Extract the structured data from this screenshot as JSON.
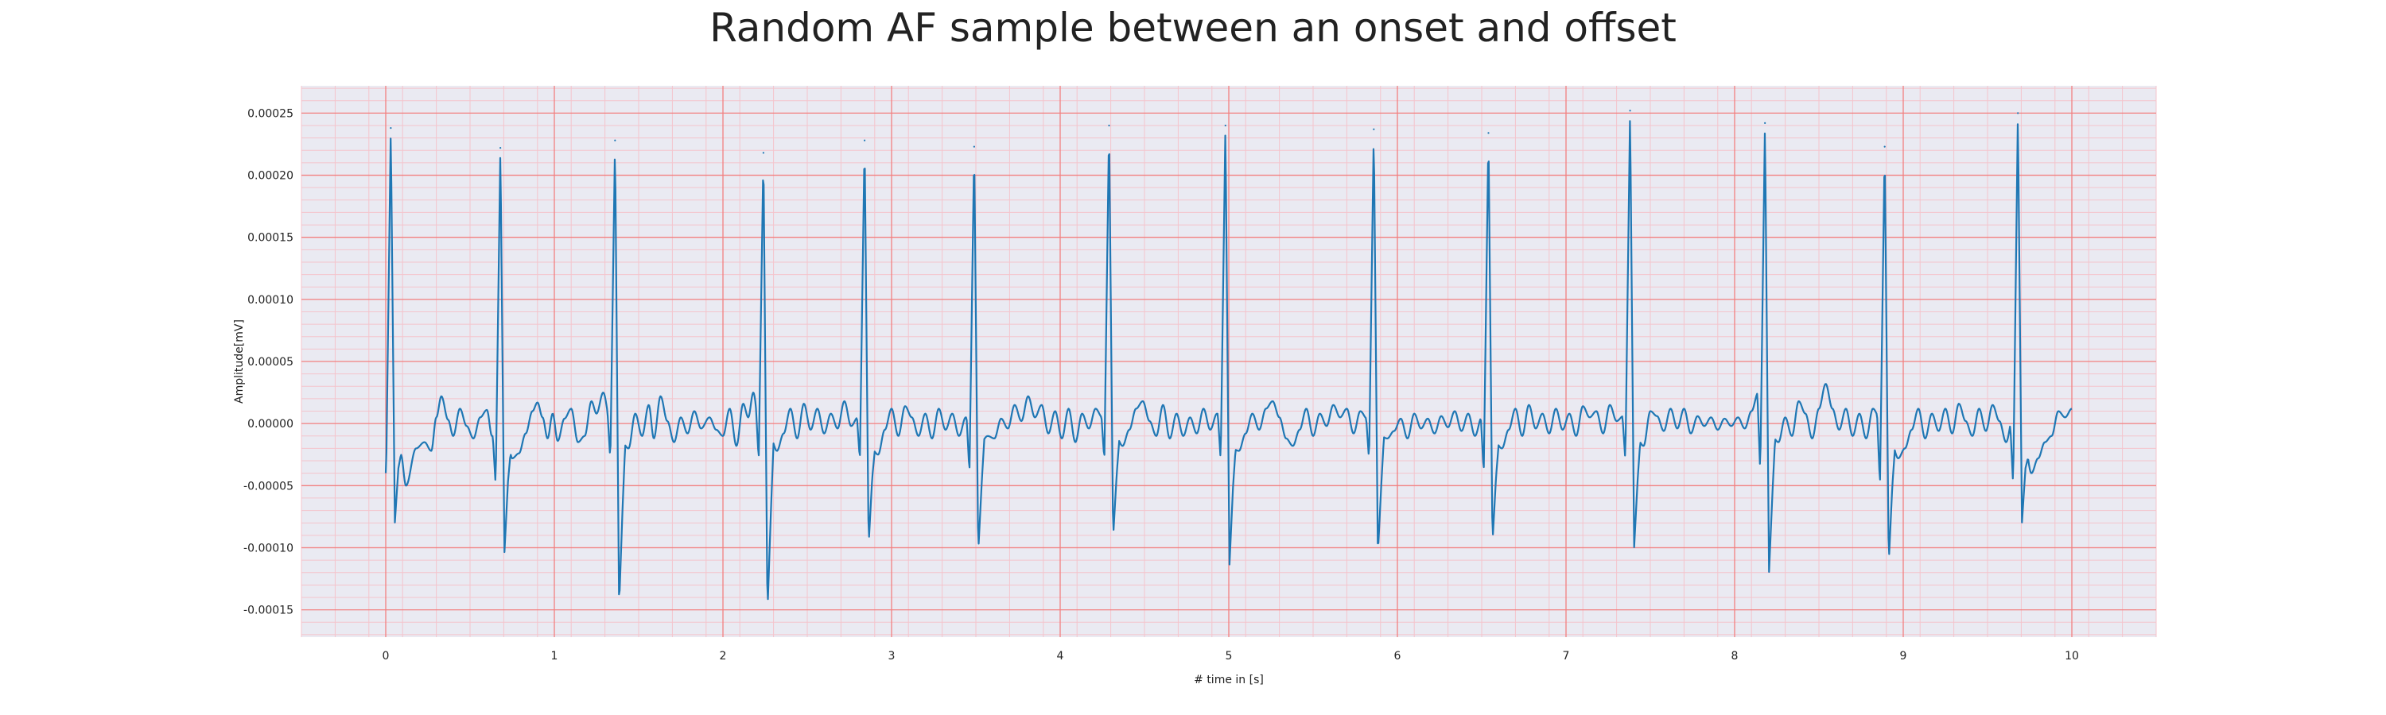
{
  "chart_data": {
    "type": "line",
    "title": "Random AF sample between an onset and offset",
    "xlabel": "# time in [s]",
    "ylabel": "Amplitude[mV]",
    "xlim": [
      -0.5,
      10.5
    ],
    "ylim": [
      -0.000172,
      0.000272
    ],
    "x_ticks": [
      0,
      1,
      2,
      3,
      4,
      5,
      6,
      7,
      8,
      9,
      10
    ],
    "x_tick_labels": [
      "0",
      "1",
      "2",
      "3",
      "4",
      "5",
      "6",
      "7",
      "8",
      "9",
      "10"
    ],
    "y_ticks": [
      -0.00015,
      -0.0001,
      -5e-05,
      0,
      5e-05,
      0.0001,
      0.00015,
      0.0002,
      0.00025
    ],
    "y_tick_labels": [
      "-0.00015",
      "-0.00010",
      "-0.00005",
      "0.00000",
      "0.00005",
      "0.00010",
      "0.00015",
      "0.00020",
      "0.00025"
    ],
    "grid": true,
    "grid_style": "ECG paper: major red lines at tick positions, minor pink subdivisions",
    "colors": {
      "line": "#1f77b4",
      "background": "#eaeaf2",
      "major_grid": "#f28080",
      "minor_grid": "#f4c4cc",
      "text": "#222222"
    },
    "series": [
      {
        "beats": [
          {
            "t": 0.03,
            "r": 0.000238,
            "q": -4.5e-05,
            "s": -8e-05
          },
          {
            "t": 0.68,
            "r": 0.000222,
            "q": -5e-05,
            "s": -0.000104
          },
          {
            "t": 1.36,
            "r": 0.000228,
            "q": -3e-05,
            "s": -0.000148
          },
          {
            "t": 2.24,
            "r": 0.000218,
            "q": -3e-05,
            "s": -0.000152
          },
          {
            "t": 2.84,
            "r": 0.000228,
            "q": -3e-05,
            "s": -9.8e-05
          },
          {
            "t": 3.49,
            "r": 0.000223,
            "q": -4e-05,
            "s": -0.000104
          },
          {
            "t": 4.29,
            "r": 0.00024,
            "q": -3e-05,
            "s": -9.2e-05
          },
          {
            "t": 4.98,
            "r": 0.00024,
            "q": -3e-05,
            "s": -0.000114
          },
          {
            "t": 5.86,
            "r": 0.000237,
            "q": -3e-05,
            "s": -0.000106
          },
          {
            "t": 6.54,
            "r": 0.000234,
            "q": -4e-05,
            "s": -9.6e-05
          },
          {
            "t": 7.38,
            "r": 0.000252,
            "q": -3e-05,
            "s": -0.0001
          },
          {
            "t": 8.18,
            "r": 0.000242,
            "q": -4e-05,
            "s": -0.00012
          },
          {
            "t": 8.89,
            "r": 0.000223,
            "q": -5e-05,
            "s": -0.000113
          },
          {
            "t": 9.68,
            "r": 0.00025,
            "q": -5e-05,
            "s": -8e-05
          }
        ],
        "t_range": [
          0,
          10
        ],
        "baseline": [
          [
            0.0,
            -2e-06
          ],
          [
            0.05,
            -3e-05
          ],
          [
            0.09,
            -2.5e-05
          ],
          [
            0.12,
            -5e-05
          ],
          [
            0.18,
            -2e-05
          ],
          [
            0.23,
            -1.5e-05
          ],
          [
            0.27,
            -2.2e-05
          ],
          [
            0.3,
            5e-06
          ],
          [
            0.33,
            2.2e-05
          ],
          [
            0.37,
            3e-06
          ],
          [
            0.4,
            -1e-05
          ],
          [
            0.44,
            1.2e-05
          ],
          [
            0.48,
            -2e-06
          ],
          [
            0.52,
            -1.2e-05
          ],
          [
            0.56,
            5e-06
          ],
          [
            0.6,
            1.1e-05
          ],
          [
            0.63,
            -1e-05
          ],
          [
            0.72,
            -1.2e-05
          ],
          [
            0.75,
            -2.8e-05
          ],
          [
            0.79,
            -2.4e-05
          ],
          [
            0.83,
            -8e-06
          ],
          [
            0.87,
            1e-05
          ],
          [
            0.9,
            1.7e-05
          ],
          [
            0.93,
            5e-06
          ],
          [
            0.96,
            -1.2e-05
          ],
          [
            0.99,
            8e-06
          ],
          [
            1.02,
            -1.4e-05
          ],
          [
            1.06,
            4e-06
          ],
          [
            1.1,
            1.2e-05
          ],
          [
            1.14,
            -1.5e-05
          ],
          [
            1.18,
            -1e-05
          ],
          [
            1.22,
            1.8e-05
          ],
          [
            1.25,
            8e-06
          ],
          [
            1.29,
            2.5e-05
          ],
          [
            1.33,
            3e-06
          ],
          [
            1.4,
            -1.5e-05
          ],
          [
            1.44,
            -2e-05
          ],
          [
            1.48,
            8e-06
          ],
          [
            1.52,
            -1e-05
          ],
          [
            1.56,
            1.5e-05
          ],
          [
            1.59,
            -1.2e-05
          ],
          [
            1.63,
            2.2e-05
          ],
          [
            1.67,
            2e-06
          ],
          [
            1.71,
            -1.5e-05
          ],
          [
            1.75,
            5e-06
          ],
          [
            1.79,
            -8e-06
          ],
          [
            1.83,
            1e-05
          ],
          [
            1.87,
            -4e-06
          ],
          [
            1.92,
            5e-06
          ],
          [
            1.96,
            -5e-06
          ],
          [
            2.0,
            -1e-05
          ],
          [
            2.04,
            1.2e-05
          ],
          [
            2.08,
            -1.8e-05
          ],
          [
            2.12,
            1.6e-05
          ],
          [
            2.15,
            5e-06
          ],
          [
            2.18,
            2.5e-05
          ],
          [
            2.21,
            4e-06
          ],
          [
            2.28,
            -1e-05
          ],
          [
            2.32,
            -2.2e-05
          ],
          [
            2.36,
            -8e-06
          ],
          [
            2.4,
            1.2e-05
          ],
          [
            2.44,
            -1.2e-05
          ],
          [
            2.48,
            1.6e-05
          ],
          [
            2.52,
            -5e-06
          ],
          [
            2.56,
            1.2e-05
          ],
          [
            2.6,
            -8e-06
          ],
          [
            2.64,
            8e-06
          ],
          [
            2.68,
            -4e-06
          ],
          [
            2.72,
            1.8e-05
          ],
          [
            2.76,
            -2e-06
          ],
          [
            2.8,
            5e-06
          ],
          [
            2.88,
            -2e-05
          ],
          [
            2.92,
            -2.5e-05
          ],
          [
            2.96,
            -5e-06
          ],
          [
            3.0,
            1.2e-05
          ],
          [
            3.04,
            -1e-05
          ],
          [
            3.08,
            1.4e-05
          ],
          [
            3.12,
            5e-06
          ],
          [
            3.16,
            -1e-05
          ],
          [
            3.2,
            8e-06
          ],
          [
            3.24,
            -1.2e-05
          ],
          [
            3.28,
            1.2e-05
          ],
          [
            3.32,
            -5e-06
          ],
          [
            3.36,
            8e-06
          ],
          [
            3.4,
            -1e-05
          ],
          [
            3.44,
            5e-06
          ],
          [
            3.53,
            -1.5e-05
          ],
          [
            3.57,
            -1e-05
          ],
          [
            3.61,
            -1.2e-05
          ],
          [
            3.65,
            4e-06
          ],
          [
            3.69,
            -4e-06
          ],
          [
            3.73,
            1.5e-05
          ],
          [
            3.77,
            2e-06
          ],
          [
            3.81,
            2.2e-05
          ],
          [
            3.85,
            5e-06
          ],
          [
            3.89,
            1.5e-05
          ],
          [
            3.93,
            -8e-06
          ],
          [
            3.97,
            1e-05
          ],
          [
            4.01,
            -1.2e-05
          ],
          [
            4.05,
            1.2e-05
          ],
          [
            4.09,
            -1.5e-05
          ],
          [
            4.13,
            8e-06
          ],
          [
            4.17,
            -4e-06
          ],
          [
            4.21,
            1.2e-05
          ],
          [
            4.25,
            5e-06
          ],
          [
            4.33,
            -1e-05
          ],
          [
            4.37,
            -1.8e-05
          ],
          [
            4.41,
            -5e-06
          ],
          [
            4.45,
            1.2e-05
          ],
          [
            4.49,
            1.8e-05
          ],
          [
            4.53,
            2e-06
          ],
          [
            4.57,
            -1e-05
          ],
          [
            4.61,
            1.5e-05
          ],
          [
            4.65,
            -1.2e-05
          ],
          [
            4.69,
            8e-06
          ],
          [
            4.73,
            -1e-05
          ],
          [
            4.77,
            5e-06
          ],
          [
            4.81,
            -8e-06
          ],
          [
            4.85,
            1.2e-05
          ],
          [
            4.89,
            -5e-06
          ],
          [
            4.93,
            8e-06
          ],
          [
            5.02,
            -2e-05
          ],
          [
            5.06,
            -2.2e-05
          ],
          [
            5.1,
            -8e-06
          ],
          [
            5.14,
            8e-06
          ],
          [
            5.18,
            -5e-06
          ],
          [
            5.22,
            1.2e-05
          ],
          [
            5.26,
            1.8e-05
          ],
          [
            5.3,
            5e-06
          ],
          [
            5.34,
            -1.2e-05
          ],
          [
            5.38,
            -1.8e-05
          ],
          [
            5.42,
            -5e-06
          ],
          [
            5.46,
            1.2e-05
          ],
          [
            5.5,
            -1e-05
          ],
          [
            5.54,
            8e-06
          ],
          [
            5.58,
            -2e-06
          ],
          [
            5.62,
            1.5e-05
          ],
          [
            5.66,
            5e-06
          ],
          [
            5.7,
            1.2e-05
          ],
          [
            5.74,
            -8e-06
          ],
          [
            5.78,
            1e-05
          ],
          [
            5.82,
            4e-06
          ],
          [
            5.9,
            -1e-05
          ],
          [
            5.94,
            -1.2e-05
          ],
          [
            5.98,
            -6e-06
          ],
          [
            6.02,
            4e-06
          ],
          [
            6.06,
            -1.2e-05
          ],
          [
            6.1,
            8e-06
          ],
          [
            6.14,
            -4e-06
          ],
          [
            6.18,
            4e-06
          ],
          [
            6.22,
            -8e-06
          ],
          [
            6.26,
            6e-06
          ],
          [
            6.3,
            -3e-06
          ],
          [
            6.34,
            1e-05
          ],
          [
            6.38,
            -6e-06
          ],
          [
            6.42,
            8e-06
          ],
          [
            6.46,
            -1e-05
          ],
          [
            6.5,
            5e-06
          ],
          [
            6.58,
            -1.5e-05
          ],
          [
            6.62,
            -2e-05
          ],
          [
            6.66,
            -5e-06
          ],
          [
            6.7,
            1.2e-05
          ],
          [
            6.74,
            -1e-05
          ],
          [
            6.78,
            1.5e-05
          ],
          [
            6.82,
            -4e-06
          ],
          [
            6.86,
            8e-06
          ],
          [
            6.9,
            -8e-06
          ],
          [
            6.94,
            1.2e-05
          ],
          [
            6.98,
            -5e-06
          ],
          [
            7.02,
            8e-06
          ],
          [
            7.06,
            -1e-05
          ],
          [
            7.1,
            1.4e-05
          ],
          [
            7.14,
            5e-06
          ],
          [
            7.18,
            1e-05
          ],
          [
            7.22,
            -8e-06
          ],
          [
            7.26,
            1.5e-05
          ],
          [
            7.3,
            2e-06
          ],
          [
            7.34,
            6e-06
          ],
          [
            7.42,
            -1.2e-05
          ],
          [
            7.46,
            -1.8e-05
          ],
          [
            7.5,
            1e-05
          ],
          [
            7.54,
            6e-06
          ],
          [
            7.58,
            -6e-06
          ],
          [
            7.62,
            1.2e-05
          ],
          [
            7.66,
            -4e-06
          ],
          [
            7.7,
            1.2e-05
          ],
          [
            7.74,
            -8e-06
          ],
          [
            7.78,
            6e-06
          ],
          [
            7.82,
            -2e-06
          ],
          [
            7.86,
            5e-06
          ],
          [
            7.9,
            -5e-06
          ],
          [
            7.94,
            4e-06
          ],
          [
            7.98,
            -2e-06
          ],
          [
            8.02,
            5e-06
          ],
          [
            8.06,
            -4e-06
          ],
          [
            8.1,
            1e-05
          ],
          [
            8.14,
            2.5e-05
          ],
          [
            8.22,
            -1e-05
          ],
          [
            8.26,
            -1.5e-05
          ],
          [
            8.3,
            5e-06
          ],
          [
            8.34,
            -1e-05
          ],
          [
            8.38,
            1.8e-05
          ],
          [
            8.42,
            8e-06
          ],
          [
            8.46,
            -1.2e-05
          ],
          [
            8.5,
            1.2e-05
          ],
          [
            8.54,
            3.2e-05
          ],
          [
            8.58,
            1.2e-05
          ],
          [
            8.62,
            -5e-06
          ],
          [
            8.66,
            1.2e-05
          ],
          [
            8.7,
            -1e-05
          ],
          [
            8.74,
            8e-06
          ],
          [
            8.78,
            -1.2e-05
          ],
          [
            8.82,
            1.2e-05
          ],
          [
            8.86,
            5e-06
          ],
          [
            8.93,
            -1.5e-05
          ],
          [
            8.97,
            -2.8e-05
          ],
          [
            9.01,
            -2e-05
          ],
          [
            9.05,
            -5e-06
          ],
          [
            9.09,
            1.2e-05
          ],
          [
            9.13,
            -1.2e-05
          ],
          [
            9.17,
            8e-06
          ],
          [
            9.21,
            -6e-06
          ],
          [
            9.25,
            1.2e-05
          ],
          [
            9.29,
            -8e-06
          ],
          [
            9.33,
            1.6e-05
          ],
          [
            9.37,
            2e-06
          ],
          [
            9.41,
            -1e-05
          ],
          [
            9.45,
            1.2e-05
          ],
          [
            9.49,
            -6e-06
          ],
          [
            9.53,
            1.5e-05
          ],
          [
            9.57,
            2e-06
          ],
          [
            9.61,
            -1.5e-05
          ],
          [
            9.65,
            5e-06
          ],
          [
            9.72,
            -1.5e-05
          ],
          [
            9.76,
            -4e-05
          ],
          [
            9.8,
            -2.8e-05
          ],
          [
            9.84,
            -1.5e-05
          ],
          [
            9.88,
            -1e-05
          ],
          [
            9.92,
            1e-05
          ],
          [
            9.96,
            5e-06
          ],
          [
            10.0,
            1.2e-05
          ]
        ]
      }
    ]
  }
}
